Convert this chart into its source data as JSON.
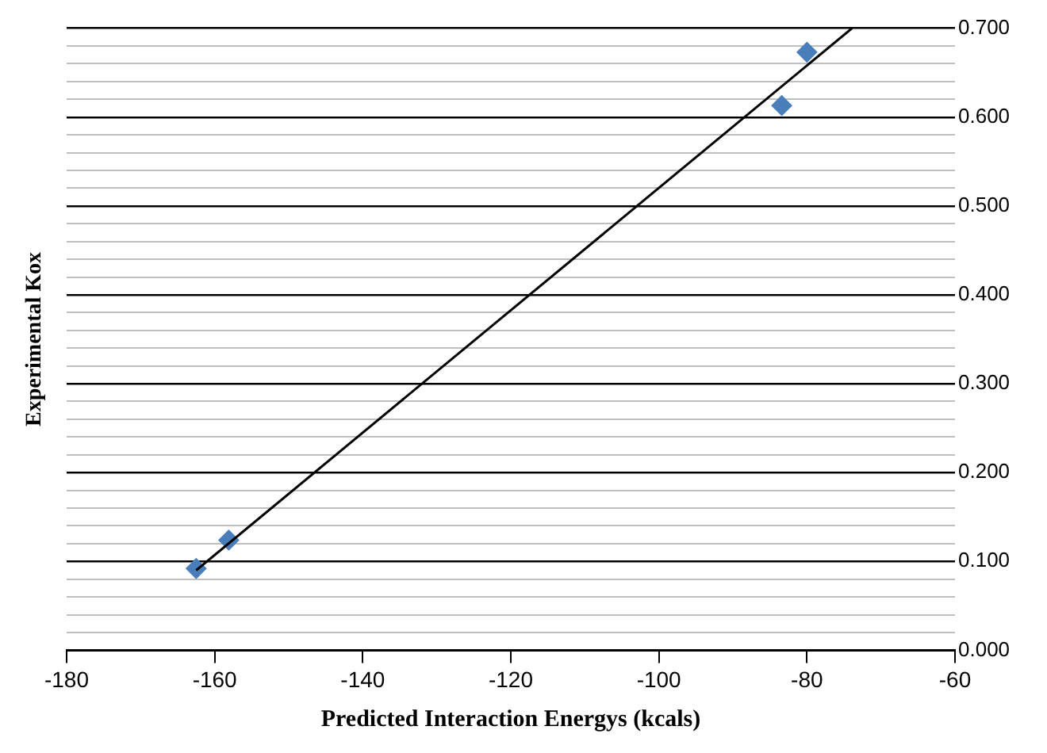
{
  "chart_data": {
    "type": "scatter",
    "xlabel": "Predicted Interaction Energys (kcals)",
    "ylabel": "Experimental Kox",
    "series": [
      {
        "x": [
          -162.5,
          -158.1,
          -83.4,
          -80.0
        ],
        "values": [
          0.092,
          0.124,
          0.613,
          0.673
        ],
        "color": "#4a7ebb",
        "marker": "diamond"
      },
      {
        "type": "line",
        "x": [
          -162.5,
          -73.9
        ],
        "values": [
          0.09,
          0.7
        ],
        "color": "#000000",
        "marker": "none",
        "line_style": "solid"
      }
    ],
    "xlim": [
      -180,
      -60
    ],
    "xticks": [
      -180,
      -160,
      -140,
      -120,
      -100,
      -80,
      -60
    ],
    "ylim": [
      0,
      0.7
    ],
    "yticks": [
      {
        "value": 0,
        "label": "0.000"
      },
      {
        "value": 0.02,
        "label": null
      },
      {
        "value": 0.04,
        "label": null
      },
      {
        "value": 0.06,
        "label": null
      },
      {
        "value": 0.08,
        "label": null
      },
      {
        "value": 0.1,
        "label": "0.100"
      },
      {
        "value": 0.12,
        "label": null
      },
      {
        "value": 0.14,
        "label": null
      },
      {
        "value": 0.16,
        "label": null
      },
      {
        "value": 0.18,
        "label": null
      },
      {
        "value": 0.2,
        "label": "0.200"
      },
      {
        "value": 0.22,
        "label": null
      },
      {
        "value": 0.24,
        "label": null
      },
      {
        "value": 0.26,
        "label": null
      },
      {
        "value": 0.28,
        "label": null
      },
      {
        "value": 0.3,
        "label": "0.300"
      },
      {
        "value": 0.32,
        "label": null
      },
      {
        "value": 0.34,
        "label": null
      },
      {
        "value": 0.36,
        "label": null
      },
      {
        "value": 0.38,
        "label": null
      },
      {
        "value": 0.4,
        "label": "0.400"
      },
      {
        "value": 0.42,
        "label": null
      },
      {
        "value": 0.44,
        "label": null
      },
      {
        "value": 0.46,
        "label": null
      },
      {
        "value": 0.48,
        "label": null
      },
      {
        "value": 0.5,
        "label": "0.500"
      },
      {
        "value": 0.52,
        "label": null
      },
      {
        "value": 0.54,
        "label": null
      },
      {
        "value": 0.56,
        "label": null
      },
      {
        "value": 0.58,
        "label": null
      },
      {
        "value": 0.6,
        "label": "0.600"
      },
      {
        "value": 0.62,
        "label": null
      },
      {
        "value": 0.64,
        "label": null
      },
      {
        "value": 0.66,
        "label": null
      },
      {
        "value": 0.68,
        "label": null
      },
      {
        "value": 0.7,
        "label": "0.700"
      }
    ],
    "grid": "y",
    "legend": false
  }
}
